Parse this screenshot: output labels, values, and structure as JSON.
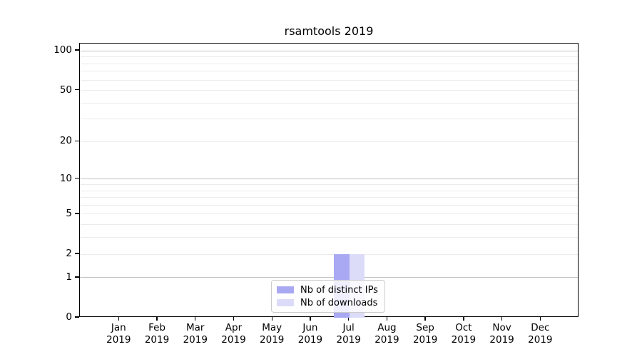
{
  "title": "rsamtools 2019",
  "colors": {
    "distinct_ips_bar": "#a9a9f3",
    "downloads_bar": "#dcdcf8",
    "grid_major": "#c4c4c4",
    "grid_minor": "#ebebeb",
    "axis_line": "#000000",
    "legend_border": "#cccccc"
  },
  "legend": {
    "position": "lower center",
    "items": [
      {
        "label": "Nb of distinct IPs",
        "color": "#a9a9f3"
      },
      {
        "label": "Nb of downloads",
        "color": "#dcdcf8"
      }
    ]
  },
  "chart_data": {
    "type": "bar",
    "title": "rsamtools 2019",
    "categories": [
      "Jan",
      "Feb",
      "Mar",
      "Apr",
      "May",
      "Jun",
      "Jul",
      "Aug",
      "Sep",
      "Oct",
      "Nov",
      "Dec"
    ],
    "year_label": "2019",
    "series": [
      {
        "name": "Nb of distinct IPs",
        "color": "#a9a9f3",
        "values": [
          0,
          0,
          0,
          0,
          0,
          0,
          2,
          0,
          0,
          0,
          0,
          0
        ]
      },
      {
        "name": "Nb of downloads",
        "color": "#dcdcf8",
        "values": [
          0,
          0,
          0,
          0,
          0,
          0,
          2,
          0,
          0,
          0,
          0,
          0
        ]
      }
    ],
    "xlabel": "",
    "ylabel": "",
    "yscale": "log1p",
    "ylim": [
      0,
      113
    ],
    "y_ticks": [
      0,
      1,
      2,
      5,
      10,
      20,
      50,
      100
    ],
    "y_major_gridlines": [
      1,
      10,
      100
    ],
    "y_minor_gridlines": [
      2,
      3,
      4,
      5,
      6,
      7,
      8,
      9,
      20,
      30,
      40,
      50,
      60,
      70,
      80,
      90
    ],
    "grid": true,
    "legend_position": "lower center"
  }
}
